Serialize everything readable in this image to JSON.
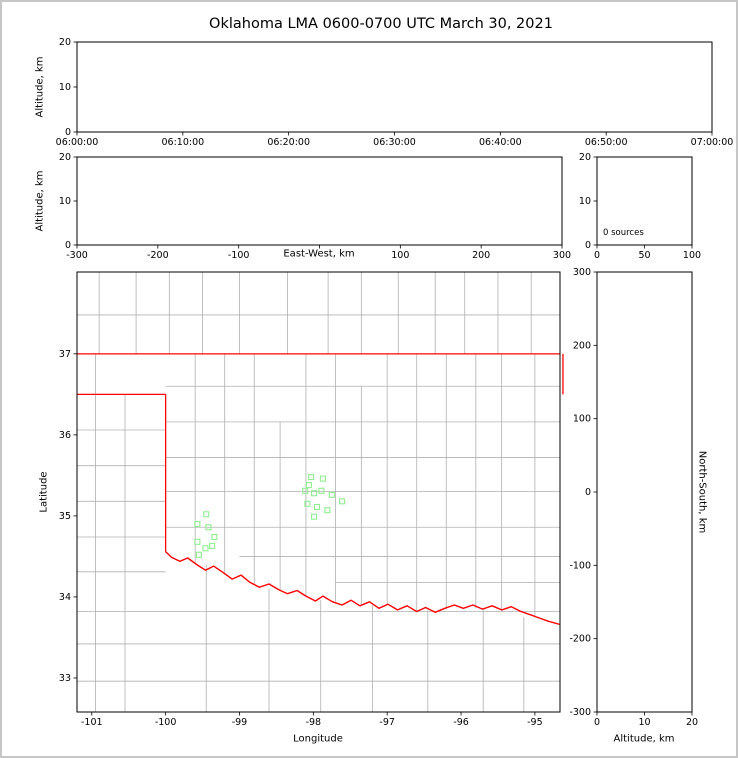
{
  "title": "Oklahoma LMA 0600-0700 UTC March 30, 2021",
  "chart_data": {
    "type": "scatter",
    "title": "Oklahoma LMA 0600-0700 UTC March 30, 2021",
    "colors": {
      "background": "#ffffff",
      "figure_frame": "#c6c6c6",
      "axes": "#000000",
      "county_lines": "#b0b0b0",
      "state_border": "#ff0000",
      "station_marker": "#90ee90"
    },
    "panels": {
      "time_height": {
        "ylabel": "Altitude, km",
        "yticks": [
          0,
          10,
          20
        ],
        "ylim": [
          0,
          20
        ],
        "xtick_labels": [
          "06:00:00",
          "06:10:00",
          "06:20:00",
          "06:30:00",
          "06:40:00",
          "06:50:00",
          "07:00:00"
        ]
      },
      "ew_height": {
        "ylabel": "Altitude, km",
        "xlabel": "East-West, km",
        "yticks": [
          0,
          10,
          20
        ],
        "ylim": [
          0,
          20
        ],
        "xticks": [
          -300,
          -200,
          -100,
          0,
          100,
          200,
          300
        ],
        "xtick_labels": [
          "-300",
          "-200",
          "-100",
          "",
          "100",
          "200",
          "300"
        ],
        "xlim": [
          -300,
          300
        ]
      },
      "source_hist": {
        "annotation": "0 sources",
        "yticks": [
          0,
          10,
          20
        ],
        "ylim": [
          0,
          20
        ],
        "xticks": [
          0,
          50,
          100
        ],
        "xlim": [
          0,
          100
        ]
      },
      "map": {
        "ylabel": "Latitude",
        "xlabel": "Longitude",
        "yticks": [
          33,
          34,
          35,
          36,
          37
        ],
        "xticks": [
          -101,
          -100,
          -99,
          -98,
          -97,
          -96,
          -95
        ],
        "xlim": [
          -101.2,
          -94.66
        ],
        "ylim": [
          32.58,
          38.01
        ]
      },
      "ns_height": {
        "ylabel": "North-South, km",
        "xlabel": "Altitude, km",
        "yticks": [
          300,
          200,
          100,
          0,
          -100,
          -200,
          -300
        ],
        "ylim": [
          -300,
          300
        ],
        "xticks": [
          0,
          10,
          20
        ],
        "xlim": [
          0,
          20
        ]
      }
    },
    "stations": {
      "marker": "open-square",
      "points": [
        [
          -99.45,
          35.02
        ],
        [
          -99.57,
          34.9
        ],
        [
          -99.42,
          34.86
        ],
        [
          -99.34,
          34.74
        ],
        [
          -99.57,
          34.68
        ],
        [
          -99.46,
          34.6
        ],
        [
          -99.55,
          34.52
        ],
        [
          -99.37,
          34.63
        ],
        [
          -98.03,
          35.48
        ],
        [
          -97.87,
          35.46
        ],
        [
          -98.11,
          35.31
        ],
        [
          -97.99,
          35.28
        ],
        [
          -97.89,
          35.31
        ],
        [
          -97.75,
          35.26
        ],
        [
          -98.08,
          35.15
        ],
        [
          -97.95,
          35.11
        ],
        [
          -97.81,
          35.07
        ],
        [
          -97.61,
          35.18
        ],
        [
          -97.99,
          34.99
        ],
        [
          -98.06,
          35.38
        ]
      ]
    },
    "map": {
      "state_border": [
        [
          "h",
          37.0,
          -101.2,
          -94.66
        ],
        [
          "h",
          36.5,
          -101.2,
          -100.0
        ],
        [
          "v",
          -100.0,
          34.56,
          36.5
        ],
        [
          "v",
          -94.62,
          36.5,
          37.0
        ]
      ],
      "red_river": [
        [
          -100.0,
          34.56
        ],
        [
          -99.92,
          34.49
        ],
        [
          -99.81,
          34.44
        ],
        [
          -99.7,
          34.48
        ],
        [
          -99.58,
          34.4
        ],
        [
          -99.46,
          34.33
        ],
        [
          -99.35,
          34.38
        ],
        [
          -99.22,
          34.3
        ],
        [
          -99.1,
          34.22
        ],
        [
          -98.98,
          34.27
        ],
        [
          -98.86,
          34.18
        ],
        [
          -98.73,
          34.12
        ],
        [
          -98.6,
          34.16
        ],
        [
          -98.47,
          34.09
        ],
        [
          -98.35,
          34.04
        ],
        [
          -98.22,
          34.08
        ],
        [
          -98.1,
          34.01
        ],
        [
          -97.97,
          33.95
        ],
        [
          -97.87,
          34.01
        ],
        [
          -97.74,
          33.94
        ],
        [
          -97.61,
          33.9
        ],
        [
          -97.49,
          33.96
        ],
        [
          -97.37,
          33.89
        ],
        [
          -97.24,
          33.94
        ],
        [
          -97.11,
          33.86
        ],
        [
          -96.99,
          33.91
        ],
        [
          -96.86,
          33.84
        ],
        [
          -96.73,
          33.89
        ],
        [
          -96.6,
          33.82
        ],
        [
          -96.48,
          33.87
        ],
        [
          -96.35,
          33.81
        ],
        [
          -96.22,
          33.86
        ],
        [
          -96.09,
          33.9
        ],
        [
          -95.97,
          33.86
        ],
        [
          -95.84,
          33.9
        ],
        [
          -95.71,
          33.85
        ],
        [
          -95.58,
          33.89
        ],
        [
          -95.45,
          33.84
        ],
        [
          -95.32,
          33.88
        ],
        [
          -95.19,
          33.82
        ],
        [
          -95.06,
          33.78
        ],
        [
          -94.94,
          33.74
        ],
        [
          -94.82,
          33.7
        ],
        [
          -94.66,
          33.66
        ]
      ],
      "county_lines": {
        "verticals": [
          [
            -100.9,
            37,
            38.01
          ],
          [
            -100.4,
            37,
            38.01
          ],
          [
            -99.95,
            37,
            38.01
          ],
          [
            -99.5,
            37,
            38.01
          ],
          [
            -99.0,
            37,
            38.01
          ],
          [
            -98.35,
            37,
            38.01
          ],
          [
            -97.8,
            37,
            38.01
          ],
          [
            -97.35,
            37,
            38.01
          ],
          [
            -96.85,
            37,
            38.01
          ],
          [
            -96.35,
            37,
            38.01
          ],
          [
            -95.95,
            37,
            38.01
          ],
          [
            -95.5,
            37,
            38.01
          ],
          [
            -95.05,
            37,
            38.01
          ],
          [
            -100.95,
            32.58,
            37.0
          ],
          [
            -100.55,
            32.58,
            36.5
          ],
          [
            -99.6,
            34.42,
            37.0
          ],
          [
            -99.2,
            34.28,
            37.0
          ],
          [
            -98.8,
            34.15,
            37.0
          ],
          [
            -98.45,
            34.07,
            36.16
          ],
          [
            -98.1,
            34.0,
            37.0
          ],
          [
            -97.7,
            33.94,
            37.0
          ],
          [
            -97.35,
            33.9,
            36.6
          ],
          [
            -97.0,
            33.9,
            37.0
          ],
          [
            -96.6,
            33.83,
            37.0
          ],
          [
            -96.2,
            33.85,
            37.0
          ],
          [
            -95.8,
            33.86,
            37.0
          ],
          [
            -95.45,
            33.82,
            37.0
          ],
          [
            -95.0,
            33.76,
            37.0
          ],
          [
            -99.45,
            32.58,
            34.4
          ],
          [
            -98.6,
            32.58,
            34.1
          ],
          [
            -97.9,
            32.58,
            33.96
          ],
          [
            -97.2,
            32.58,
            33.9
          ],
          [
            -96.45,
            32.58,
            33.84
          ],
          [
            -95.7,
            32.58,
            33.85
          ],
          [
            -95.15,
            32.58,
            33.75
          ]
        ],
        "horizontals": [
          [
            37.48,
            -101.2,
            -94.66
          ],
          [
            36.6,
            -100.0,
            -94.66
          ],
          [
            36.16,
            -100.0,
            -94.66
          ],
          [
            35.72,
            -100.0,
            -94.66
          ],
          [
            35.3,
            -100.0,
            -94.66
          ],
          [
            34.86,
            -100.0,
            -94.66
          ],
          [
            34.5,
            -99.0,
            -94.66
          ],
          [
            34.18,
            -97.7,
            -94.66
          ],
          [
            36.06,
            -101.2,
            -100.0
          ],
          [
            35.62,
            -101.2,
            -100.0
          ],
          [
            35.18,
            -101.2,
            -100.0
          ],
          [
            34.74,
            -101.2,
            -100.0
          ],
          [
            34.31,
            -101.2,
            -100.0
          ],
          [
            33.82,
            -101.2,
            -94.66
          ],
          [
            33.42,
            -101.2,
            -94.66
          ],
          [
            32.96,
            -101.2,
            -94.66
          ]
        ]
      }
    }
  }
}
